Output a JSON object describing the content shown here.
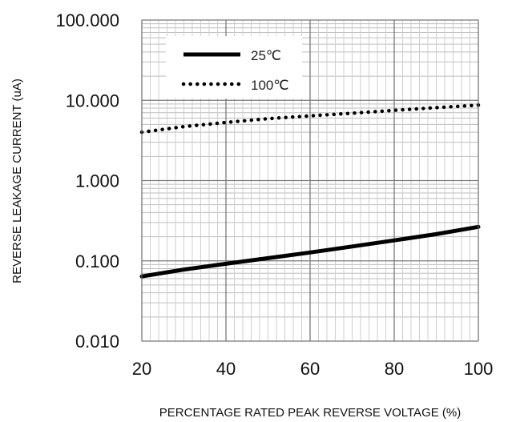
{
  "chart_data": {
    "type": "line",
    "title": "",
    "xlabel": "PERCENTAGE RATED PEAK REVERSE VOLTAGE (%)",
    "ylabel": "REVERSE LEAKAGE CURRENT (uA)",
    "xlim": [
      20,
      100
    ],
    "ylim": [
      0.01,
      100
    ],
    "yscale": "log",
    "grid": true,
    "legend_position": "top-left",
    "x_ticks": [
      20,
      40,
      60,
      80,
      100
    ],
    "x_tick_labels": [
      "20",
      "40",
      "60",
      "80",
      "100"
    ],
    "y_ticks": [
      0.01,
      0.1,
      1,
      10,
      100
    ],
    "y_tick_labels": [
      "0.010",
      "0.100",
      "1.000",
      "10.000",
      "100.000"
    ],
    "series": [
      {
        "name": "25℃",
        "style": "solid",
        "color": "#000000",
        "x": [
          20,
          30,
          40,
          50,
          60,
          70,
          80,
          90,
          100
        ],
        "y": [
          0.064,
          0.078,
          0.092,
          0.108,
          0.127,
          0.151,
          0.18,
          0.215,
          0.265
        ]
      },
      {
        "name": "100℃",
        "style": "dotted",
        "color": "#000000",
        "x": [
          20,
          30,
          40,
          50,
          60,
          70,
          80,
          90,
          100
        ],
        "y": [
          4.0,
          4.7,
          5.3,
          5.9,
          6.4,
          6.9,
          7.5,
          8.1,
          8.7
        ]
      }
    ]
  }
}
